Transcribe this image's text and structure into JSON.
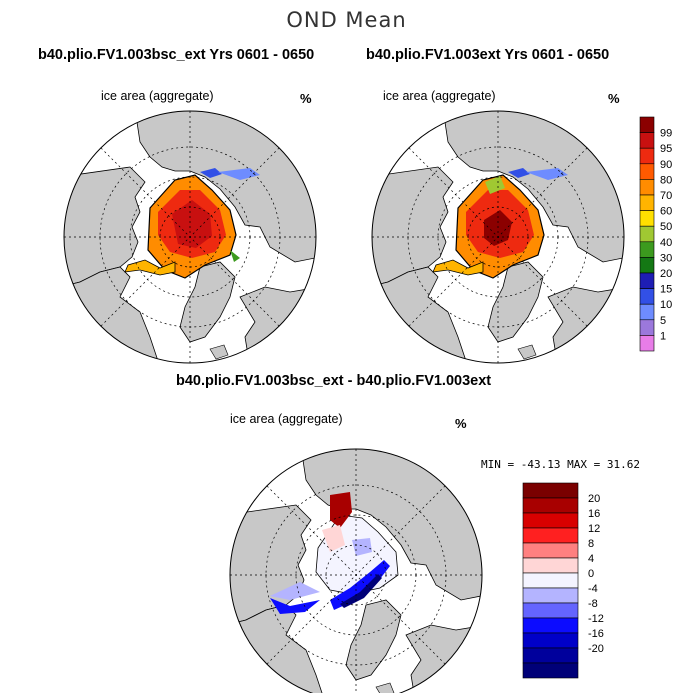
{
  "figure": {
    "title": "OND Mean",
    "panels": [
      {
        "id": "left",
        "title": "b40.plio.FV1.003bsc_ext  Yrs 0601 - 0650",
        "variable": "ice area  (aggregate)",
        "units": "%"
      },
      {
        "id": "right",
        "title": "b40.plio.FV1.003ext  Yrs 0601 - 0650",
        "variable": "ice area  (aggregate)",
        "units": "%"
      },
      {
        "id": "diff",
        "title": "b40.plio.FV1.003bsc_ext - b40.plio.FV1.003ext",
        "variable": "ice area  (aggregate)",
        "units": "%",
        "minmax": "MIN = -43.13 MAX =  31.62"
      }
    ]
  },
  "colorbar_abs": {
    "labels": [
      "99",
      "95",
      "90",
      "80",
      "70",
      "60",
      "50",
      "40",
      "30",
      "20",
      "15",
      "10",
      "5",
      "1"
    ],
    "colors": [
      "#8b0000",
      "#c81010",
      "#ee2a10",
      "#ff5a00",
      "#ff8c00",
      "#ffb400",
      "#ffe000",
      "#a0c832",
      "#3c9a1e",
      "#147814",
      "#1e1eb4",
      "#3250e6",
      "#6e8cff",
      "#9b78dc",
      "#e87de8"
    ]
  },
  "colorbar_diff": {
    "labels": [
      "20",
      "16",
      "12",
      "8",
      "4",
      "0",
      "-4",
      "-8",
      "-12",
      "-16",
      "-20"
    ],
    "colors": [
      "#7a0000",
      "#a80000",
      "#d80000",
      "#ff2020",
      "#ff8080",
      "#ffd6d6",
      "#f4f4ff",
      "#b4b4ff",
      "#6464ff",
      "#0c0cff",
      "#0000c8",
      "#00009c",
      "#000078"
    ]
  }
}
